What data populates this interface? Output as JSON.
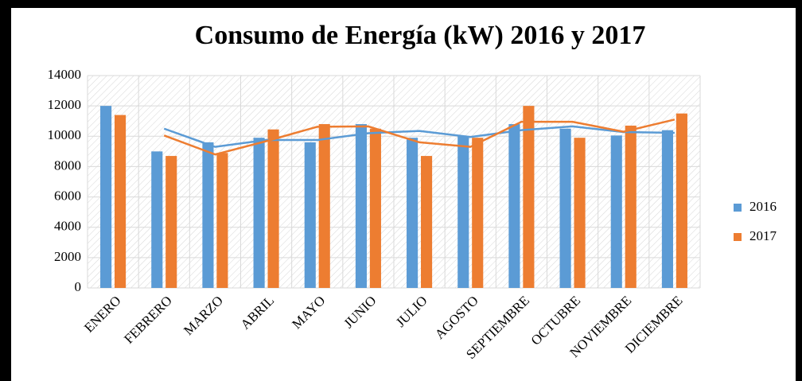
{
  "chart_data": {
    "type": "bar",
    "title": "Consumo de Energía (kW) 2016 y 2017",
    "categories": [
      "ENERO",
      "FEBRERO",
      "MARZO",
      "ABRIL",
      "MAYO",
      "JUNIO",
      "JULIO",
      "AGOSTO",
      "SEPTIEMBRE",
      "OCTUBRE",
      "NOVIEMBRE",
      "DICIEMBRE"
    ],
    "series": [
      {
        "name": "2016",
        "color": "#5b9bd5",
        "values": [
          12000,
          9000,
          9600,
          9900,
          9600,
          10800,
          9900,
          10000,
          10800,
          10500,
          10050,
          10400
        ],
        "trendline": {
          "type": "moving_average",
          "period": 2
        }
      },
      {
        "name": "2017",
        "color": "#ed7d31",
        "values": [
          11400,
          8700,
          8900,
          10450,
          10800,
          10500,
          8700,
          9900,
          12000,
          9900,
          10700,
          11500
        ],
        "trendline": {
          "type": "moving_average",
          "period": 2
        }
      }
    ],
    "ylim": [
      0,
      14000
    ],
    "yticks": [
      0,
      2000,
      4000,
      6000,
      8000,
      10000,
      12000,
      14000
    ],
    "grid": true,
    "legend": "right"
  }
}
